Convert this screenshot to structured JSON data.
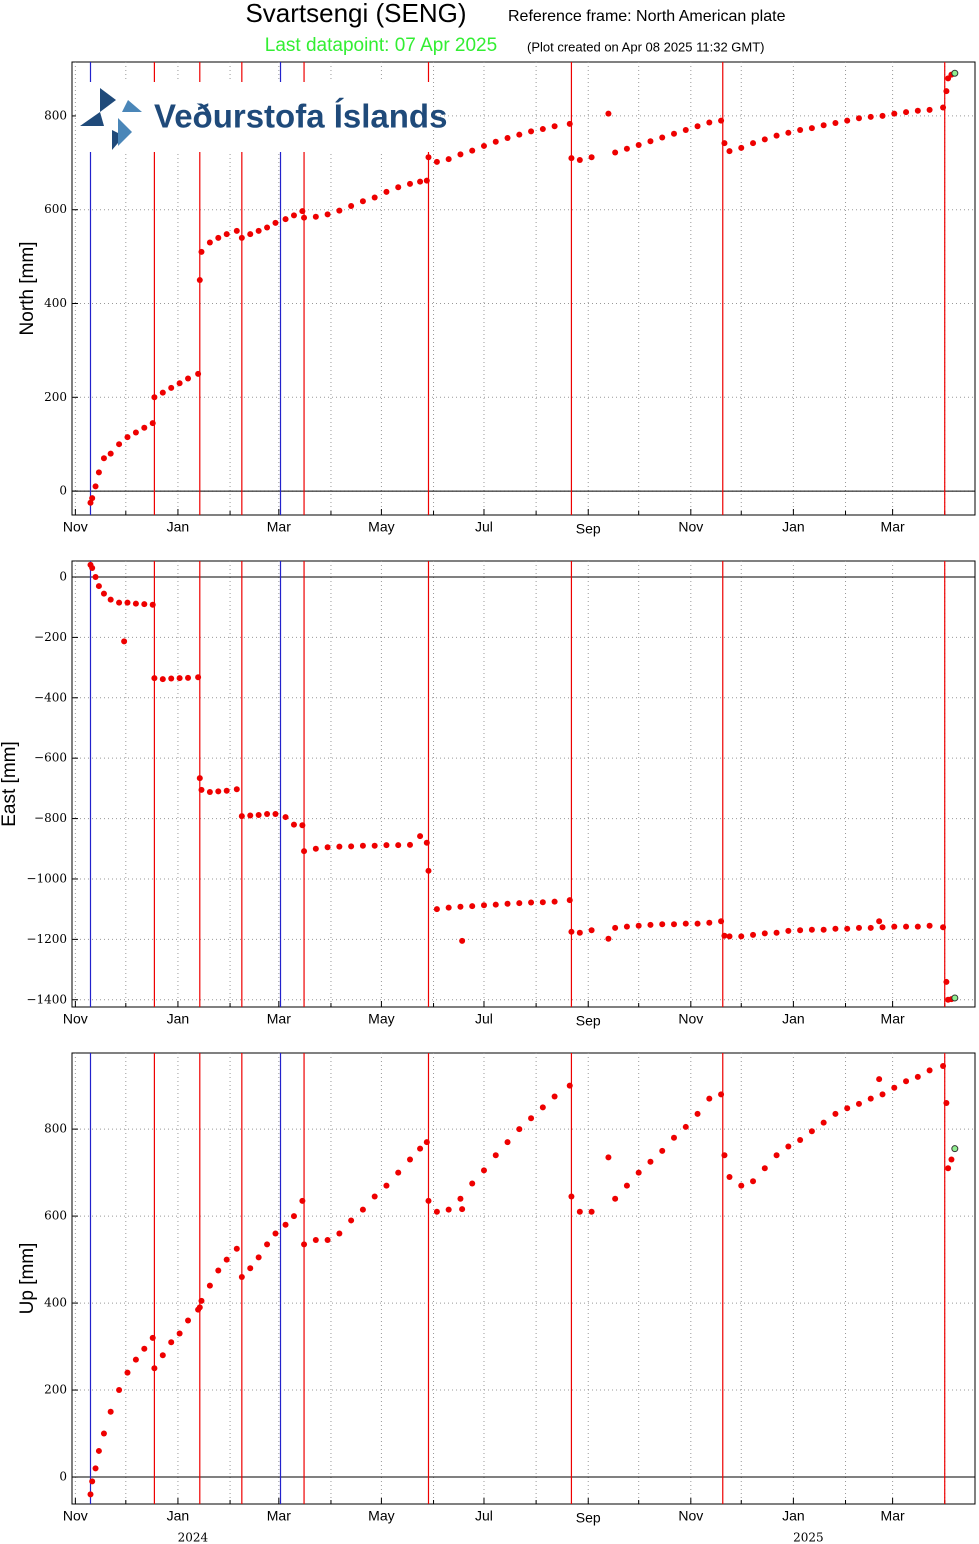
{
  "header": {
    "title": "Svartsengi (SENG)",
    "reference_frame": "Reference frame: North American plate",
    "last_datapoint": "Last datapoint: 07 Apr 2025",
    "plot_created": "(Plot created on Apr 08 2025 11:32 GMT)",
    "logo": "Veðurstofa Íslands"
  },
  "chart_data": {
    "type": "scatter",
    "color": "#ee0000",
    "last_point_color": "#90ee90",
    "grid": true,
    "zero_line": true,
    "xlim": [
      "2023-10-30",
      "2025-04-19"
    ],
    "xticks": [
      {
        "value": "2023-11-01",
        "label": "Nov"
      },
      {
        "value": "2024-01-01",
        "label": "Jan"
      },
      {
        "value": "2024-03-01",
        "label": "Mar"
      },
      {
        "value": "2024-05-01",
        "label": "May"
      },
      {
        "value": "2024-07-01",
        "label": "Jul"
      },
      {
        "value": "2024-09-01",
        "label": "Sep"
      },
      {
        "value": "2024-11-01",
        "label": "Nov"
      },
      {
        "value": "2025-01-01",
        "label": "Jan"
      },
      {
        "value": "2025-03-01",
        "label": "Mar"
      }
    ],
    "xminor": [
      "2023-12-01",
      "2024-02-01",
      "2024-04-01",
      "2024-06-01",
      "2024-08-01",
      "2024-10-01",
      "2024-12-01",
      "2025-02-01",
      "2025-04-01"
    ],
    "xyears": [
      {
        "value": "2024-01-01",
        "label": "2024"
      },
      {
        "value": "2025-01-01",
        "label": "2025"
      }
    ],
    "events": [
      {
        "date": "2023-11-10",
        "color": "#2222cc"
      },
      {
        "date": "2023-12-18",
        "color": "#ee0000"
      },
      {
        "date": "2024-01-14",
        "color": "#ee0000"
      },
      {
        "date": "2024-02-08",
        "color": "#ee0000"
      },
      {
        "date": "2024-03-02",
        "color": "#2222cc"
      },
      {
        "date": "2024-03-16",
        "color": "#ee0000"
      },
      {
        "date": "2024-05-29",
        "color": "#ee0000"
      },
      {
        "date": "2024-08-22",
        "color": "#ee0000"
      },
      {
        "date": "2024-11-20",
        "color": "#ee0000"
      },
      {
        "date": "2025-04-01",
        "color": "#ee0000"
      }
    ],
    "x": [
      "2023-11-10",
      "2023-11-11",
      "2023-11-13",
      "2023-11-15",
      "2023-11-18",
      "2023-11-22",
      "2023-11-27",
      "2023-11-30",
      "2023-12-02",
      "2023-12-07",
      "2023-12-12",
      "2023-12-17",
      "2023-12-18",
      "2023-12-23",
      "2023-12-28",
      "2024-01-02",
      "2024-01-07",
      "2024-01-13",
      "2024-01-14",
      "2024-01-15",
      "2024-01-20",
      "2024-01-25",
      "2024-01-30",
      "2024-02-05",
      "2024-02-08",
      "2024-02-13",
      "2024-02-18",
      "2024-02-23",
      "2024-02-28",
      "2024-03-05",
      "2024-03-10",
      "2024-03-15",
      "2024-03-16",
      "2024-03-23",
      "2024-03-30",
      "2024-04-06",
      "2024-04-13",
      "2024-04-20",
      "2024-04-27",
      "2024-05-04",
      "2024-05-11",
      "2024-05-18",
      "2024-05-24",
      "2024-05-28",
      "2024-05-29",
      "2024-06-03",
      "2024-06-10",
      "2024-06-17",
      "2024-06-18",
      "2024-06-24",
      "2024-07-01",
      "2024-07-08",
      "2024-07-15",
      "2024-07-22",
      "2024-07-29",
      "2024-08-05",
      "2024-08-12",
      "2024-08-21",
      "2024-08-22",
      "2024-08-27",
      "2024-09-03",
      "2024-09-13",
      "2024-09-17",
      "2024-09-24",
      "2024-10-01",
      "2024-10-08",
      "2024-10-15",
      "2024-10-22",
      "2024-10-29",
      "2024-11-05",
      "2024-11-12",
      "2024-11-19",
      "2024-11-21",
      "2024-11-24",
      "2024-12-01",
      "2024-12-08",
      "2024-12-15",
      "2024-12-22",
      "2024-12-29",
      "2025-01-05",
      "2025-01-12",
      "2025-01-19",
      "2025-01-26",
      "2025-02-02",
      "2025-02-09",
      "2025-02-16",
      "2025-02-21",
      "2025-02-23",
      "2025-03-02",
      "2025-03-09",
      "2025-03-16",
      "2025-03-23",
      "2025-03-31",
      "2025-04-02",
      "2025-04-03",
      "2025-04-05",
      "2025-04-07"
    ],
    "panels": [
      {
        "ylabel": "North [mm]",
        "ylim": [
          -51,
          915
        ],
        "yticks": [
          0,
          200,
          400,
          600,
          800
        ],
        "values": [
          -25,
          -15,
          10,
          40,
          70,
          80,
          100,
          null,
          115,
          125,
          135,
          145,
          200,
          210,
          220,
          230,
          240,
          250,
          450,
          510,
          530,
          540,
          548,
          555,
          540,
          548,
          555,
          562,
          572,
          580,
          588,
          597,
          583,
          585,
          590,
          598,
          608,
          618,
          626,
          638,
          648,
          655,
          660,
          662,
          712,
          702,
          708,
          718,
          null,
          726,
          736,
          745,
          753,
          760,
          767,
          772,
          778,
          783,
          710,
          706,
          712,
          805,
          722,
          730,
          738,
          746,
          754,
          762,
          770,
          778,
          786,
          790,
          742,
          725,
          732,
          742,
          750,
          758,
          764,
          770,
          774,
          780,
          785,
          790,
          795,
          798,
          null,
          800,
          805,
          808,
          811,
          813,
          818,
          853,
          880,
          888,
          891
        ]
      },
      {
        "ylabel": "East [mm]",
        "ylim": [
          -1424,
          53
        ],
        "yticks": [
          0,
          {
            "value": -200,
            "label": "−200"
          },
          {
            "value": -400,
            "label": "−400"
          },
          {
            "value": -600,
            "label": "−600"
          },
          {
            "value": -800,
            "label": "−800"
          },
          {
            "value": -1000,
            "label": "−1000"
          },
          {
            "value": -1200,
            "label": "−1200"
          },
          {
            "value": -1400,
            "label": "−1400"
          }
        ],
        "values": [
          40,
          30,
          0,
          -30,
          -55,
          -75,
          -85,
          -213,
          -85,
          -88,
          -90,
          -92,
          -335,
          -338,
          -336,
          -335,
          -334,
          -332,
          -666,
          -705,
          -712,
          -710,
          -708,
          -703,
          -792,
          -790,
          -788,
          -785,
          -785,
          -795,
          -820,
          -822,
          -908,
          -900,
          -895,
          -893,
          -892,
          -890,
          -890,
          -888,
          -888,
          -887,
          -858,
          -880,
          -973,
          -1100,
          -1095,
          -1092,
          -1205,
          -1090,
          -1087,
          -1085,
          -1082,
          -1080,
          -1078,
          -1077,
          -1075,
          -1070,
          -1175,
          -1178,
          -1170,
          -1198,
          -1162,
          -1158,
          -1155,
          -1152,
          -1150,
          -1150,
          -1148,
          -1148,
          -1145,
          -1140,
          -1188,
          -1190,
          -1190,
          -1185,
          -1180,
          -1178,
          -1172,
          -1170,
          -1168,
          -1168,
          -1165,
          -1165,
          -1162,
          -1162,
          -1140,
          -1160,
          -1158,
          -1158,
          -1158,
          -1155,
          -1160,
          -1341,
          -1400,
          -1398,
          -1394
        ]
      },
      {
        "ylabel": "Up [mm]",
        "ylim": [
          -62,
          975
        ],
        "yticks": [
          0,
          200,
          400,
          600,
          800
        ],
        "values": [
          -40,
          -10,
          20,
          60,
          100,
          150,
          200,
          null,
          240,
          270,
          295,
          320,
          250,
          280,
          310,
          330,
          360,
          385,
          390,
          405,
          440,
          475,
          500,
          525,
          460,
          480,
          505,
          535,
          560,
          580,
          600,
          635,
          535,
          545,
          545,
          560,
          590,
          615,
          645,
          670,
          700,
          730,
          755,
          770,
          635,
          610,
          615,
          640,
          616,
          675,
          705,
          740,
          770,
          800,
          825,
          850,
          875,
          900,
          645,
          610,
          610,
          735,
          640,
          670,
          700,
          725,
          750,
          780,
          805,
          835,
          870,
          880,
          740,
          690,
          670,
          680,
          710,
          740,
          760,
          775,
          795,
          815,
          835,
          848,
          858,
          870,
          915,
          880,
          895,
          910,
          920,
          935,
          945,
          860,
          710,
          730,
          755
        ]
      }
    ]
  }
}
